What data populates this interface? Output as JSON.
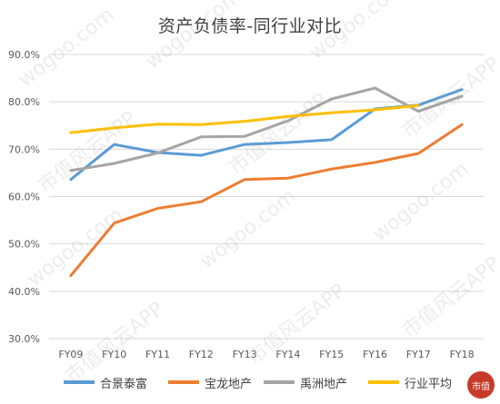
{
  "chart_data": {
    "type": "line",
    "title": "资产负债率-同行业对比",
    "categories": [
      "FY09",
      "FY10",
      "FY11",
      "FY12",
      "FY13",
      "FY14",
      "FY15",
      "FY16",
      "FY17",
      "FY18"
    ],
    "ylim": [
      30,
      90
    ],
    "yticks": [
      "30.0%",
      "40.0%",
      "50.0%",
      "60.0%",
      "70.0%",
      "80.0%",
      "90.0%"
    ],
    "grid": true,
    "legend_position": "bottom",
    "series": [
      {
        "name": "合景泰富",
        "color": "#5b9bd5",
        "values": [
          63.6,
          71.0,
          69.3,
          68.7,
          71.0,
          71.4,
          72.0,
          78.5,
          79.3,
          82.6
        ]
      },
      {
        "name": "宝龙地产",
        "color": "#ed7d31",
        "values": [
          43.3,
          54.4,
          57.5,
          58.9,
          63.6,
          63.9,
          65.8,
          67.2,
          69.1,
          75.2
        ]
      },
      {
        "name": "禹洲地产",
        "color": "#a5a5a5",
        "values": [
          65.5,
          67.0,
          69.2,
          72.6,
          72.7,
          76.0,
          80.6,
          82.9,
          78.0,
          81.2
        ]
      },
      {
        "name": "行业平均",
        "color": "#ffc000",
        "values": [
          73.5,
          74.5,
          75.3,
          75.2,
          75.9,
          76.9,
          77.7,
          78.3,
          79.2,
          null
        ]
      }
    ]
  },
  "watermark": {
    "lines": [
      "wogoo.com",
      "市值风云APP"
    ]
  },
  "logo": {
    "text": "市值"
  }
}
